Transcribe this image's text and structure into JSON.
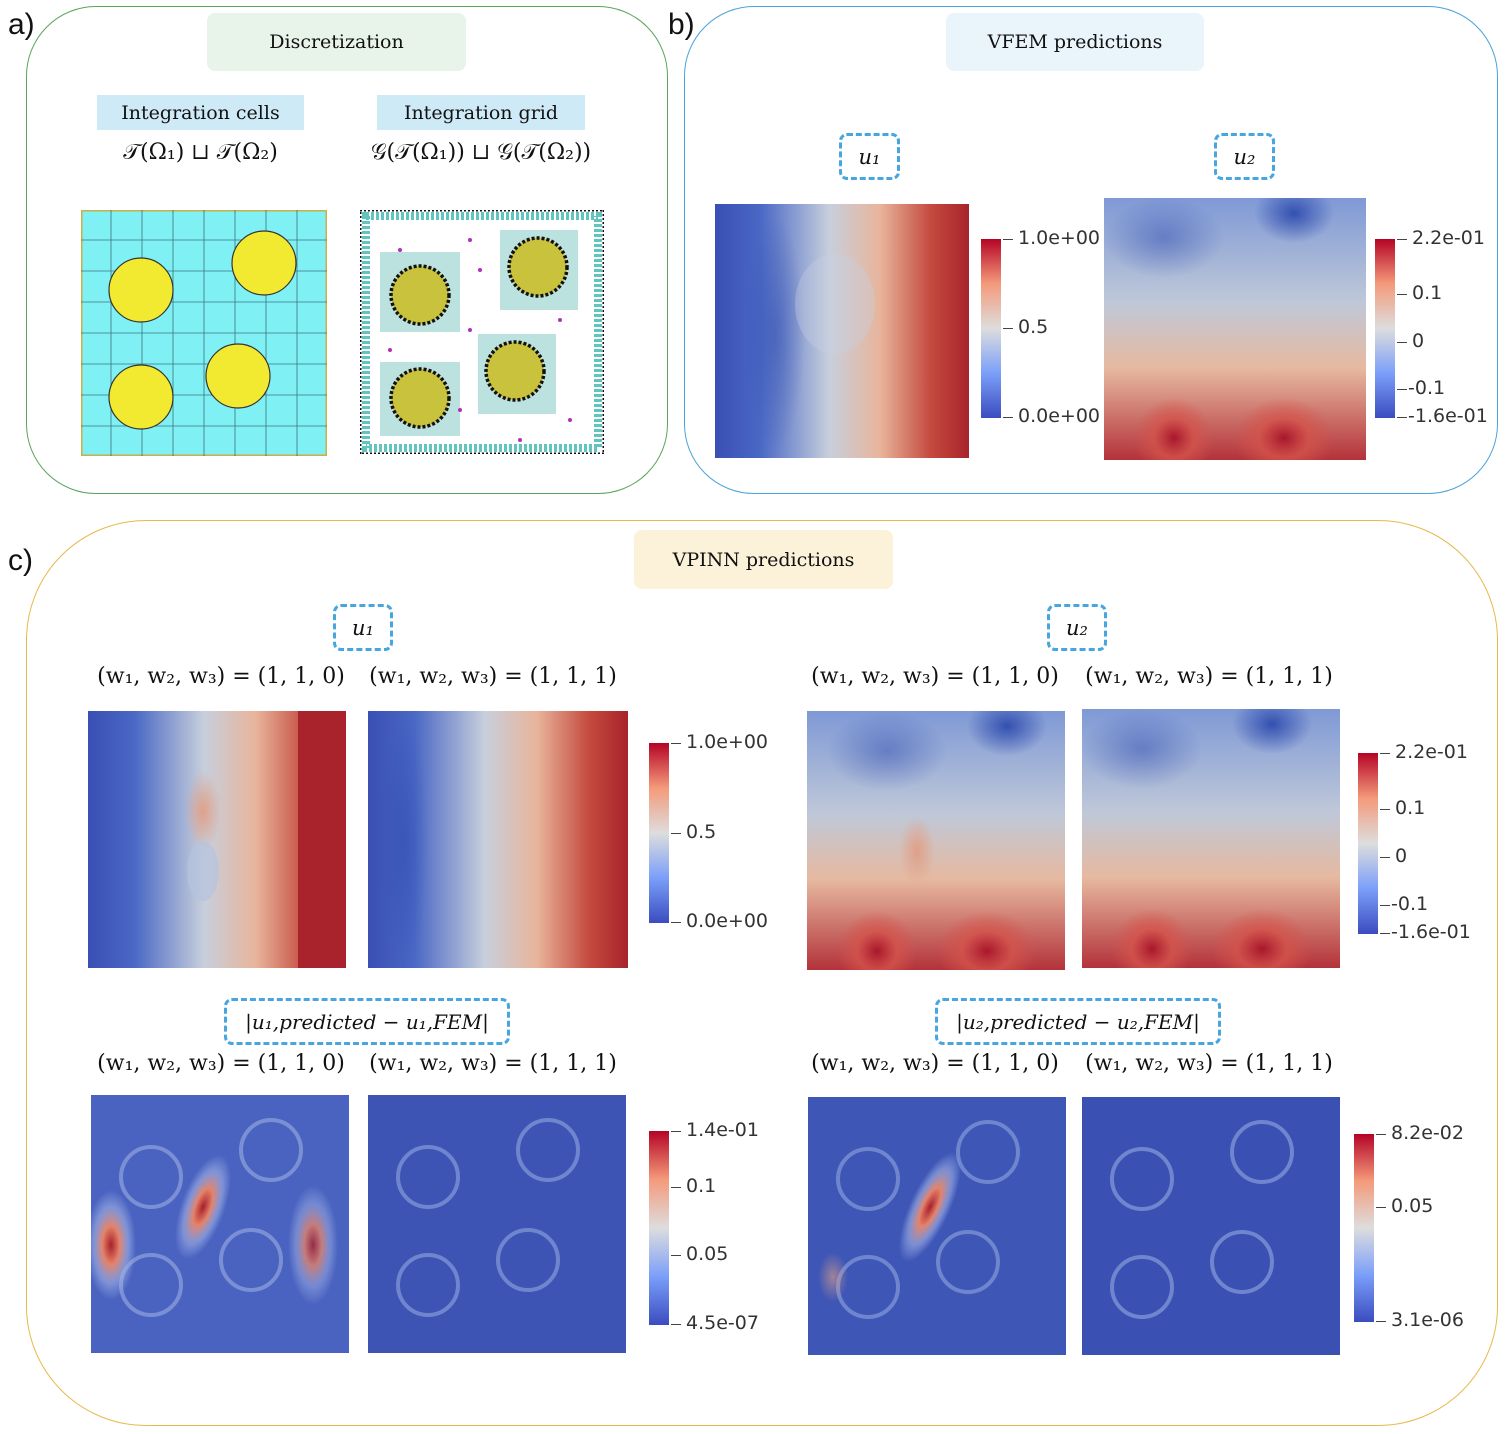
{
  "panels": {
    "a": {
      "letter": "a)",
      "title": "Discretization",
      "cells_caption": "Integration cells",
      "cells_formula": "𝒯(Ω₁) ⊔ 𝒯(Ω₂)",
      "grid_caption": "Integration grid",
      "grid_formula": "𝒢(𝒯(Ω₁)) ⊔ 𝒢(𝒯(Ω₂))"
    },
    "b": {
      "letter": "b)",
      "title": "VFEM predictions",
      "u1_label": "u₁",
      "u2_label": "u₂",
      "cb1": {
        "top": "1.0e+00",
        "mid": "0.5",
        "bottom": "0.0e+00"
      },
      "cb2": {
        "top": "2.2e-01",
        "t1": "0.1",
        "t2": "0",
        "t3": "-0.1",
        "bottom": "-1.6e-01"
      }
    },
    "c": {
      "letter": "c)",
      "title": "VPINN predictions",
      "u1_label": "u₁",
      "u2_label": "u₂",
      "err1_label": "|u₁,predicted − u₁,FEM|",
      "err2_label": "|u₂,predicted − u₂,FEM|",
      "w110": "(w₁, w₂, w₃) = (1, 1, 0)",
      "w111": "(w₁, w₂, w₃) = (1, 1, 1)",
      "cb_u1": {
        "top": "1.0e+00",
        "mid": "0.5",
        "bottom": "0.0e+00"
      },
      "cb_u2": {
        "top": "2.2e-01",
        "t1": "0.1",
        "t2": "0",
        "t3": "-0.1",
        "bottom": "-1.6e-01"
      },
      "cb_e1": {
        "top": "1.4e-01",
        "t1": "0.1",
        "t2": "0.05",
        "bottom": "4.5e-07"
      },
      "cb_e2": {
        "top": "8.2e-02",
        "t1": "0.05",
        "bottom": "3.1e-06"
      }
    }
  },
  "colors": {
    "frame_a": "#5aa55a",
    "frame_b": "#4aa3d8",
    "frame_c": "#e8b84a",
    "pill_a": "#e8f3e9",
    "pill_b": "#e9f4fb",
    "pill_c": "#fcf1d9",
    "dashed": "#47a6df",
    "cool": "#3a4fb4",
    "warm": "#b4232c"
  }
}
